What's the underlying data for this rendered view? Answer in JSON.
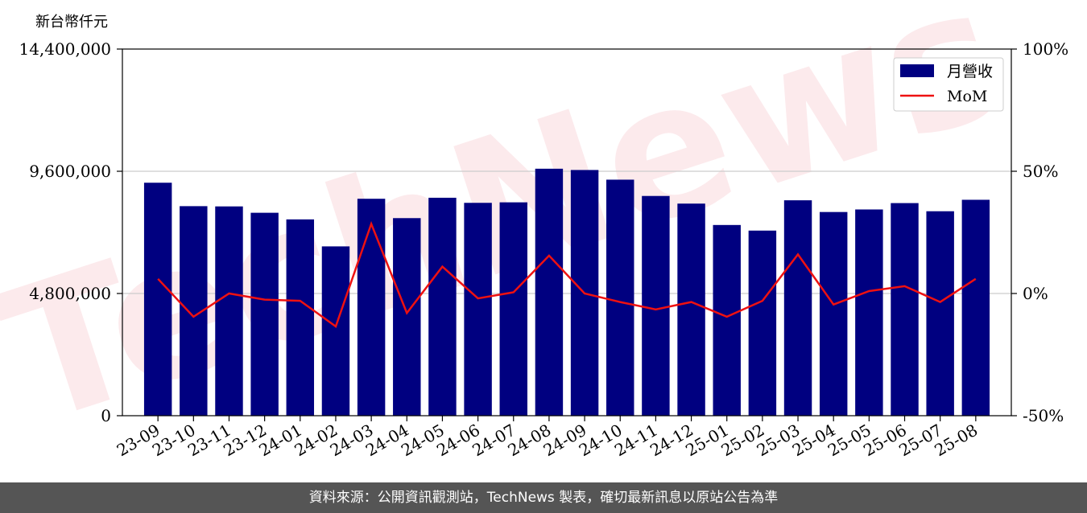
{
  "unit_label": "新台幣仟元",
  "footer_text": "資料來源：公開資訊觀測站，TechNews 製表，確切最新訊息以原站公告為準",
  "watermark": "TechNews",
  "colors": {
    "bar": "#000080",
    "line": "#ee1111",
    "grid": "#cccccc",
    "footer_bg": "#555555"
  },
  "chart_data": {
    "type": "bar",
    "categories": [
      "23-09",
      "23-10",
      "23-11",
      "23-12",
      "24-01",
      "24-02",
      "24-03",
      "24-04",
      "24-05",
      "24-06",
      "24-07",
      "24-08",
      "24-09",
      "24-10",
      "24-11",
      "24-12",
      "25-01",
      "25-02",
      "25-03",
      "25-04",
      "25-05",
      "25-06",
      "25-07",
      "25-08"
    ],
    "series": [
      {
        "name": "月營收",
        "type": "bar",
        "axis": "left",
        "values": [
          9150000,
          8230000,
          8220000,
          7970000,
          7710000,
          6650000,
          8520000,
          7760000,
          8560000,
          8360000,
          8380000,
          9700000,
          9650000,
          9270000,
          8630000,
          8330000,
          7490000,
          7270000,
          8460000,
          8000000,
          8100000,
          8350000,
          8030000,
          8480000
        ]
      },
      {
        "name": "MoM",
        "type": "line",
        "axis": "right",
        "unit": "%",
        "values": [
          6,
          -9.5,
          0,
          -2.5,
          -3,
          -13.5,
          28.5,
          -8,
          11,
          -2,
          0.5,
          15.5,
          0,
          -3.5,
          -6.5,
          -3.5,
          -9.5,
          -3,
          16,
          -4.5,
          1,
          3,
          -3.5,
          6
        ]
      }
    ],
    "y_left": {
      "min": 0,
      "max": 14400000,
      "ticks": [
        0,
        4800000,
        9600000,
        14400000
      ],
      "tick_labels": [
        "0",
        "4,800,000",
        "9,600,000",
        "14,400,000"
      ]
    },
    "y_right": {
      "min": -50,
      "max": 100,
      "ticks": [
        -50,
        0,
        50,
        100
      ],
      "tick_labels": [
        "-50%",
        "0%",
        "50%",
        "100%"
      ]
    },
    "grid": true,
    "legend_position": "top-right"
  }
}
